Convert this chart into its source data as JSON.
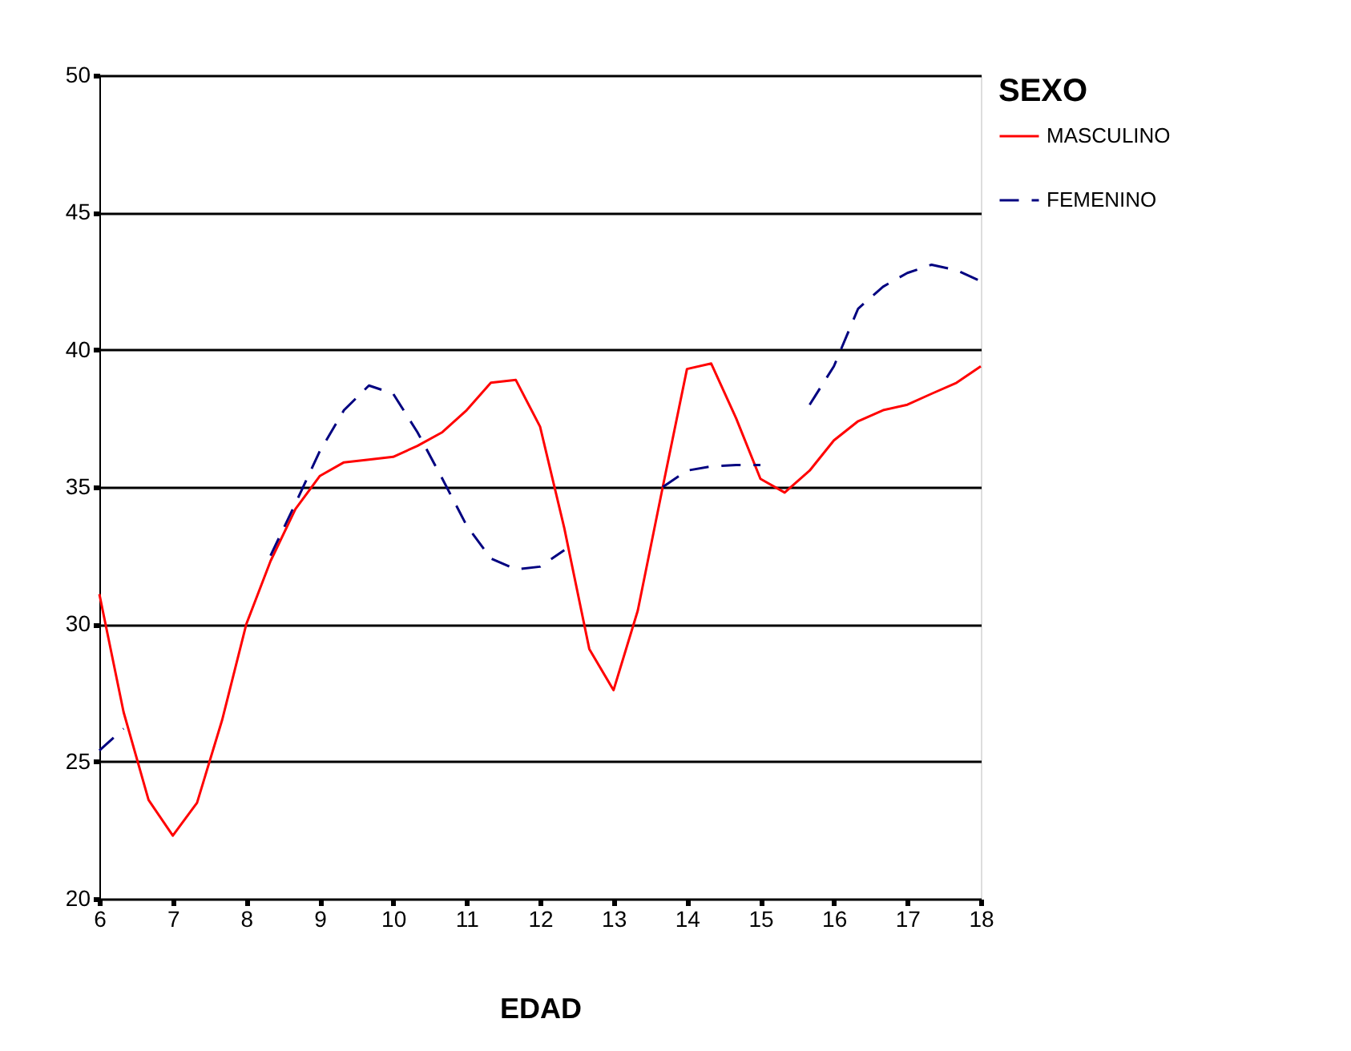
{
  "chart_data": {
    "type": "line",
    "xlabel": "EDAD",
    "legend_title": "SEXO",
    "xlim": [
      6,
      18
    ],
    "xticks": [
      6,
      7,
      8,
      9,
      10,
      11,
      12,
      13,
      14,
      15,
      16,
      17,
      18
    ],
    "ylim": [
      20,
      50
    ],
    "yticks": [
      20,
      25,
      30,
      35,
      40,
      45,
      50
    ],
    "grid": "y",
    "legend": "right",
    "marker": "none",
    "x": [
      6,
      6.33,
      6.67,
      7,
      7.33,
      7.67,
      8,
      8.33,
      8.67,
      9,
      9.33,
      9.67,
      10,
      10.33,
      10.67,
      11,
      11.33,
      11.67,
      12,
      12.33,
      12.67,
      13,
      13.33,
      13.67,
      14,
      14.33,
      14.67,
      15,
      15.33,
      15.67,
      16,
      16.33,
      16.67,
      17,
      17.33,
      17.67,
      18
    ],
    "series": [
      {
        "name": "MASCULINO",
        "color": "#ff0000",
        "line_style": "solid",
        "values": [
          31.1,
          26.8,
          23.6,
          22.3,
          23.5,
          26.5,
          30.0,
          32.3,
          34.2,
          35.4,
          35.9,
          36.0,
          36.1,
          36.5,
          37.0,
          37.8,
          38.8,
          38.9,
          37.2,
          33.5,
          29.1,
          27.6,
          30.5,
          35.0,
          39.3,
          39.5,
          37.5,
          35.3,
          34.8,
          35.6,
          36.7,
          37.4,
          37.8,
          38.0,
          38.4,
          38.8,
          39.4
        ]
      },
      {
        "name": "FEMENINO",
        "color": "#000080",
        "line_style": "dashed",
        "values": [
          25.4,
          26.2,
          null,
          null,
          null,
          null,
          null,
          32.5,
          34.4,
          36.3,
          37.8,
          38.7,
          38.4,
          37.0,
          35.3,
          33.6,
          32.4,
          32.0,
          32.1,
          32.7,
          null,
          null,
          null,
          35.0,
          35.6,
          35.75,
          35.8,
          35.8,
          null,
          38.0,
          39.4,
          41.5,
          42.3,
          42.8,
          43.1,
          42.9,
          42.5
        ]
      }
    ]
  }
}
